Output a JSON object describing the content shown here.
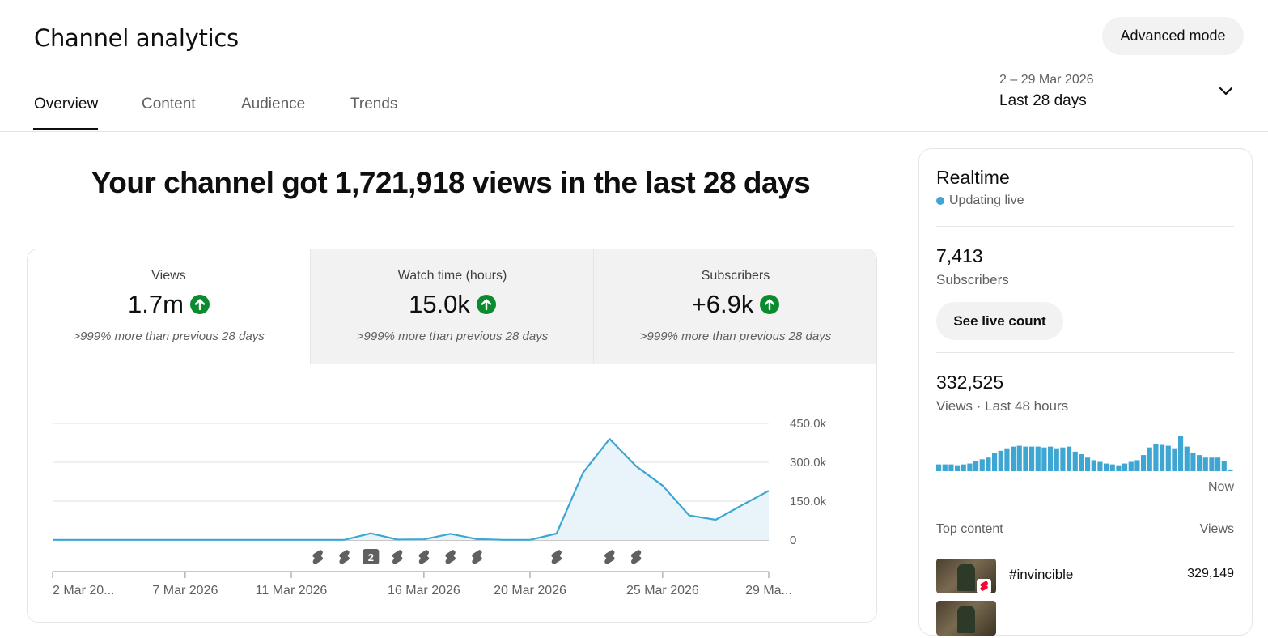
{
  "header": {
    "title": "Channel analytics",
    "advanced_mode_label": "Advanced mode",
    "tabs": [
      {
        "label": "Overview",
        "active": true
      },
      {
        "label": "Content",
        "active": false
      },
      {
        "label": "Audience",
        "active": false
      },
      {
        "label": "Trends",
        "active": false
      }
    ],
    "date_range": {
      "dates": "2 – 29 Mar 2026",
      "label": "Last 28 days"
    }
  },
  "summary": {
    "headline": "Your channel got 1,721,918 views in the last 28 days"
  },
  "metrics": [
    {
      "label": "Views",
      "value": "1.7m",
      "trend": "up",
      "comparison": ">999% more than previous 28 days",
      "selected": true
    },
    {
      "label": "Watch time (hours)",
      "value": "15.0k",
      "trend": "up",
      "comparison": ">999% more than previous 28 days",
      "selected": false
    },
    {
      "label": "Subscribers",
      "value": "+6.9k",
      "trend": "up",
      "comparison": ">999% more than previous 28 days",
      "selected": false
    }
  ],
  "chart_data": {
    "type": "area",
    "series": [
      {
        "values": [
          500,
          500,
          500,
          500,
          500,
          500,
          500,
          500,
          500,
          500,
          500,
          500,
          26000,
          1500,
          2500,
          24000,
          3500,
          500,
          500,
          25000,
          260000,
          390000,
          285000,
          210000,
          95000,
          78000,
          135000,
          190000
        ]
      }
    ],
    "x_tick_labels": [
      "2 Mar 20...",
      "7 Mar 2026",
      "11 Mar 2026",
      "16 Mar 2026",
      "20 Mar 2026",
      "25 Mar 2026",
      "29 Ma..."
    ],
    "x_tick_day_index": [
      0,
      5,
      9,
      14,
      18,
      23,
      27
    ],
    "y_tick_labels": [
      "450.0k",
      "300.0k",
      "150.0k",
      "0"
    ],
    "y_tick_values": [
      450000,
      300000,
      150000,
      0
    ],
    "ylim": [
      0,
      450000
    ],
    "grid": true,
    "line_color": "#3ea6d2",
    "fill_color": "#e8f4fa",
    "upload_markers": [
      {
        "day": 10,
        "count": 1
      },
      {
        "day": 11,
        "count": 1
      },
      {
        "day": 12,
        "count": 2
      },
      {
        "day": 13,
        "count": 1
      },
      {
        "day": 14,
        "count": 1
      },
      {
        "day": 15,
        "count": 1
      },
      {
        "day": 16,
        "count": 1
      },
      {
        "day": 19,
        "count": 1
      },
      {
        "day": 21,
        "count": 1
      },
      {
        "day": 22,
        "count": 1
      }
    ]
  },
  "realtime": {
    "title": "Realtime",
    "live_label": "Updating live",
    "subscribers_value": "7,413",
    "subscribers_label": "Subscribers",
    "live_count_button": "See live count",
    "views_value": "332,525",
    "views_label": "Views · Last 48 hours",
    "now_label": "Now",
    "hourly_views": [
      8,
      8,
      8,
      7,
      8,
      9,
      12,
      14,
      16,
      21,
      24,
      27,
      29,
      30,
      29,
      29,
      29,
      28,
      29,
      27,
      28,
      29,
      23,
      20,
      16,
      13,
      11,
      9,
      8,
      7,
      9,
      11,
      13,
      19,
      28,
      32,
      31,
      30,
      27,
      42,
      29,
      22,
      19,
      16,
      16,
      16,
      12,
      2
    ],
    "bar_color": "#3ea6d2",
    "top_content": {
      "header_label": "Top content",
      "header_value": "Views",
      "items": [
        {
          "title": "#invincible",
          "views": "329,149"
        }
      ]
    }
  }
}
